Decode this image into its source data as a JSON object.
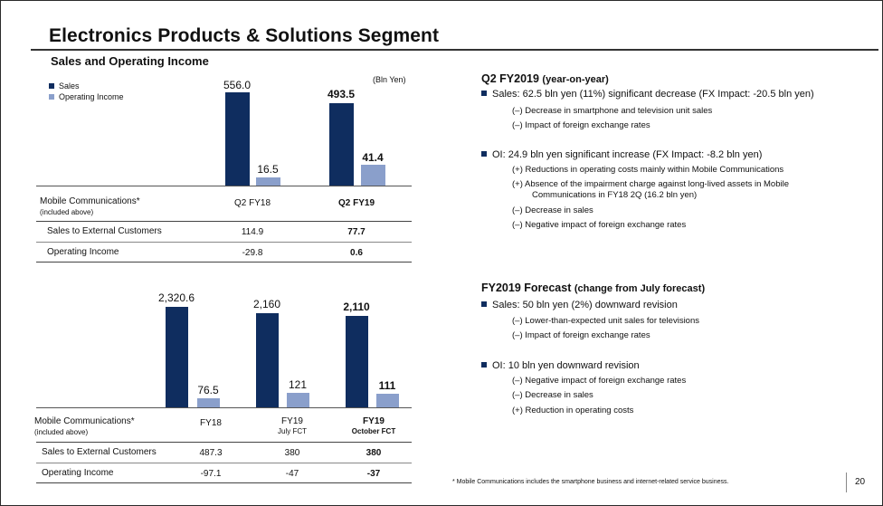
{
  "title": "Electronics Products & Solutions Segment",
  "subtitle": "Sales and Operating Income",
  "legend": {
    "sales": "Sales",
    "oi": "Operating Income"
  },
  "unit": "(Bln Yen)",
  "colors": {
    "sales": "#0f2d5f",
    "oi": "#8a9fcb"
  },
  "chart_data": [
    {
      "type": "bar",
      "categories": [
        "Q2 FY18",
        "Q2 FY19"
      ],
      "series": [
        {
          "name": "Sales",
          "values": [
            556.0,
            493.5
          ],
          "labels": [
            "556.0",
            "493.5"
          ]
        },
        {
          "name": "Operating Income",
          "values": [
            16.5,
            41.4
          ],
          "labels": [
            "16.5",
            "41.4"
          ]
        }
      ],
      "unit": "(Bln Yen)"
    },
    {
      "type": "bar",
      "categories": [
        "FY18",
        "FY19 July FCT",
        "FY19 October FCT"
      ],
      "series": [
        {
          "name": "Sales",
          "values": [
            2320.6,
            2160,
            2110
          ],
          "labels": [
            "2,320.6",
            "2,160",
            "2,110"
          ]
        },
        {
          "name": "Operating Income",
          "values": [
            76.5,
            121,
            111
          ],
          "labels": [
            "76.5",
            "121",
            "111"
          ]
        }
      ]
    }
  ],
  "table1": {
    "title": "Mobile Communications*",
    "note": "(included above)",
    "rows": [
      {
        "label": "Sales to External Customers",
        "values": [
          "114.9",
          "77.7"
        ]
      },
      {
        "label": "Operating Income",
        "values": [
          "-29.8",
          "0.6"
        ]
      }
    ]
  },
  "table2": {
    "title": "Mobile Communications*",
    "note": "(included above)",
    "col2": {
      "title": "FY19",
      "sub": "July FCT"
    },
    "col3": {
      "title": "FY19",
      "sub": "October FCT"
    },
    "rows": [
      {
        "label": "Sales to External Customers",
        "values": [
          "487.3",
          "380",
          "380"
        ]
      },
      {
        "label": "Operating Income",
        "values": [
          "-97.1",
          "-47",
          "-37"
        ]
      }
    ]
  },
  "q2": {
    "heading": "Q2 FY2019",
    "heading_sub": "(year-on-year)",
    "sales": "Sales: 62.5 bln yen (11%) significant decrease (FX Impact: -20.5 bln yen)",
    "sales_items": [
      "(–) Decrease in smartphone and television unit sales",
      "(–) Impact of foreign exchange rates"
    ],
    "oi": "OI: 24.9 bln yen significant increase (FX Impact: -8.2 bln yen)",
    "oi_items": [
      "(+) Reductions in operating costs mainly within Mobile Communications",
      "(–) Decrease in sales",
      "(–) Negative impact of foreign exchange rates"
    ],
    "oi_item2_line1": "(+) Absence of the impairment charge against long-lived assets in Mobile",
    "oi_item2_line2": "Communications in FY18 2Q (16.2 bln yen)"
  },
  "forecast": {
    "heading": "FY2019 Forecast",
    "heading_sub": "(change from July forecast)",
    "sales": "Sales: 50 bln yen (2%) downward revision",
    "sales_items": [
      "(–) Lower-than-expected unit sales for televisions",
      "(–) Impact of foreign exchange rates"
    ],
    "oi": "OI: 10 bln yen downward revision",
    "oi_items": [
      "(–) Negative impact of foreign exchange rates",
      "(–) Decrease in sales",
      "(+) Reduction in operating costs"
    ]
  },
  "footnote": "* Mobile Communications includes the smartphone business and internet-related service business.",
  "page_number": "20"
}
